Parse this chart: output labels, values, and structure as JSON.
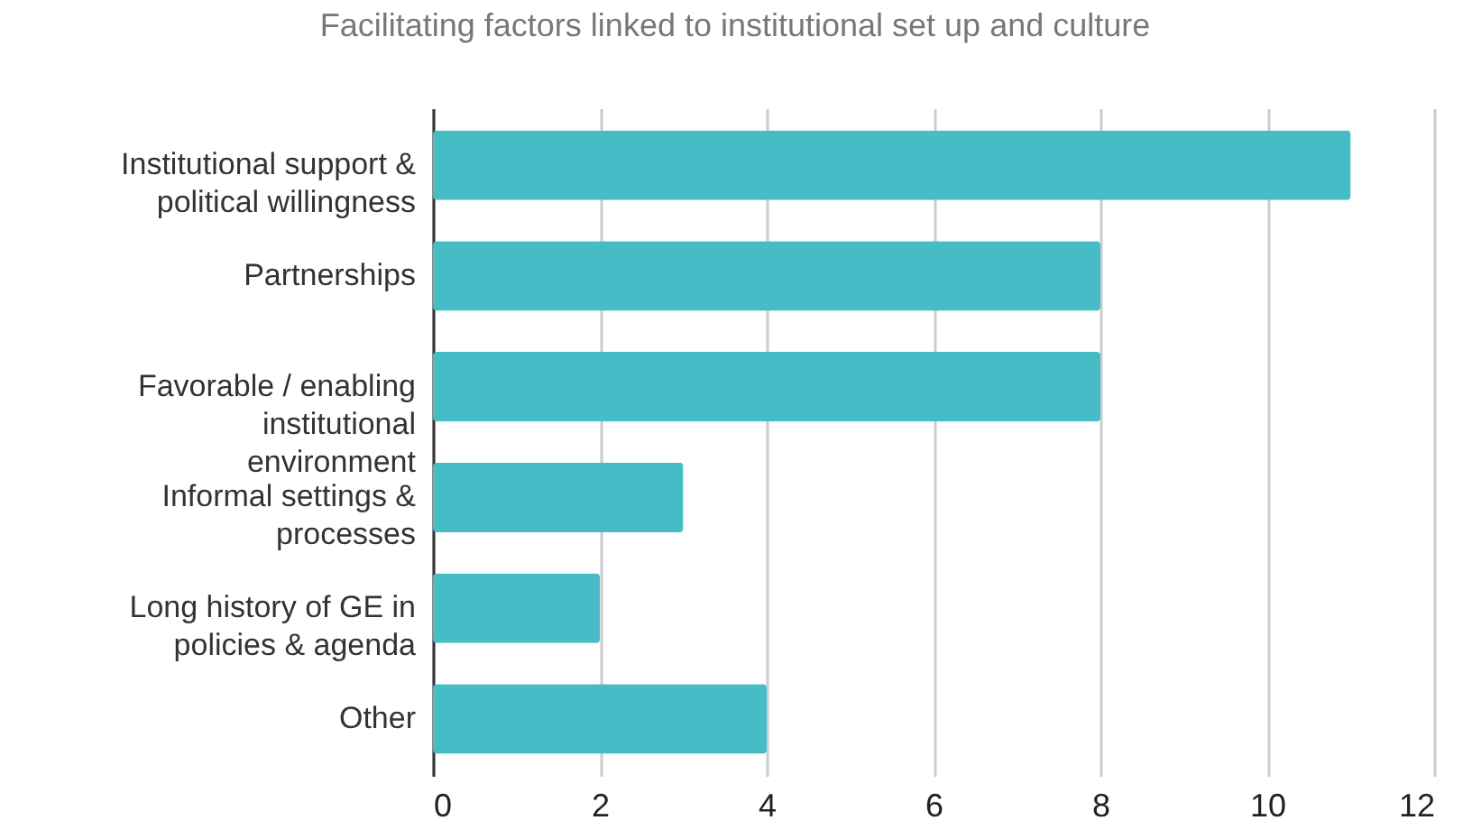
{
  "chart_data": {
    "type": "bar",
    "orientation": "horizontal",
    "title": "Facilitating factors linked to institutional set up and culture",
    "categories": [
      "Institutional support & political willingness",
      "Partnerships",
      "Favorable / enabling institutional environment",
      "Informal settings & processes",
      "Long history of GE in policies & agenda",
      "Other"
    ],
    "values": [
      11,
      8,
      8,
      3,
      2,
      4
    ],
    "color": "#46bdc6",
    "xlim": [
      0,
      12
    ],
    "xticks": [
      0,
      2,
      4,
      6,
      8,
      10,
      12
    ],
    "grid": "x"
  }
}
